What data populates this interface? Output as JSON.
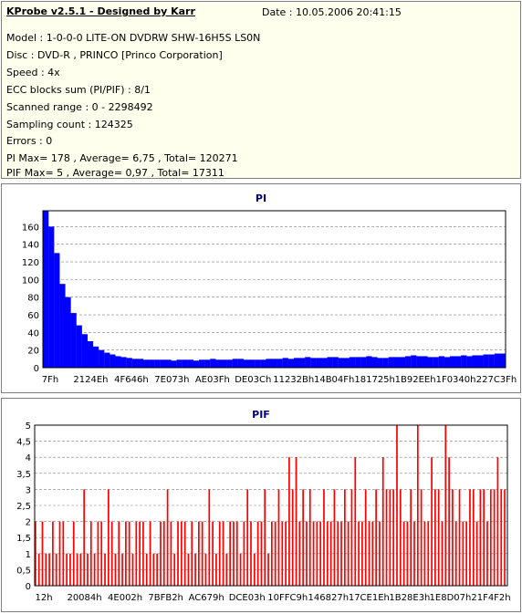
{
  "header": {
    "title": "KProbe v2.5.1 - Designed by Karr",
    "date": "Date : 10.05.2006 20:41:15"
  },
  "info_lines": [
    "Model : 1-0-0-0 LITE-ON DVDRW SHW-16H5S  LS0N",
    "Disc : DVD-R , PRINCO [Princo Corporation]",
    "Speed : 4x",
    "ECC blocks sum (PI/PIF) : 8/1",
    "Scanned range : 0 - 2298492",
    "Sampling count : 124325",
    "Errors : 0",
    "PI Max= 178 , Average= 6,75 , Total= 120271",
    "PIF Max= 5 , Average= 0,97 , Total= 17311"
  ],
  "colors": {
    "pi_series": "#0000ff",
    "pif_series": "#ff0000",
    "title_text": "#000080",
    "grid": "#808080",
    "info_bg": "#ffffee"
  },
  "chart_data": [
    {
      "type": "area",
      "title": "PI",
      "x_tick_labels": [
        "7Fh",
        "2124Eh",
        "4F646h",
        "7E073h",
        "AE03Fh",
        "DE03Ch",
        "11232Bh",
        "14B04Fh",
        "181725h",
        "1B92EEh",
        "1F0340h",
        "227C3Fh"
      ],
      "y_tick_labels": [
        "0",
        "20",
        "40",
        "60",
        "80",
        "100",
        "120",
        "140",
        "160"
      ],
      "ylim": [
        0,
        178
      ],
      "grid": true,
      "series": [
        {
          "values": [
            178,
            160,
            130,
            95,
            80,
            62,
            48,
            38,
            30,
            24,
            20,
            17,
            15,
            13,
            12,
            11,
            10,
            10,
            9,
            9,
            9,
            9,
            9,
            8,
            9,
            9,
            9,
            8,
            9,
            9,
            10,
            9,
            9,
            9,
            10,
            10,
            9,
            9,
            9,
            9,
            10,
            10,
            10,
            11,
            10,
            11,
            11,
            12,
            11,
            11,
            11,
            12,
            12,
            11,
            11,
            12,
            12,
            12,
            13,
            12,
            11,
            11,
            12,
            12,
            12,
            13,
            14,
            13,
            13,
            12,
            12,
            13,
            12,
            13,
            13,
            14,
            13,
            14,
            14,
            15,
            15,
            16,
            16
          ]
        }
      ]
    },
    {
      "type": "bar",
      "title": "PIF",
      "x_tick_labels": [
        "12h",
        "20084h",
        "4E002h",
        "7BFB2h",
        "AC679h",
        "DCE03h",
        "10FFC9h",
        "146827h",
        "17CE1Eh",
        "1B28E3h",
        "1E8D07h",
        "21F4F2h"
      ],
      "y_tick_labels": [
        "0",
        "0,5",
        "1",
        "1,5",
        "2",
        "2,5",
        "3",
        "3,5",
        "4",
        "4,5",
        "5"
      ],
      "ylim": [
        0,
        5
      ],
      "grid": true,
      "series": [
        {
          "values": [
            2,
            1,
            2,
            1,
            1,
            2,
            1,
            2,
            2,
            1,
            1,
            2,
            1,
            1,
            3,
            1,
            2,
            1,
            2,
            2,
            1,
            3,
            2,
            1,
            2,
            1,
            2,
            2,
            1,
            2,
            2,
            2,
            1,
            2,
            1,
            1,
            2,
            2,
            3,
            2,
            1,
            2,
            2,
            2,
            1,
            2,
            1,
            2,
            2,
            1,
            3,
            2,
            1,
            2,
            2,
            1,
            2,
            2,
            2,
            1,
            2,
            3,
            2,
            1,
            2,
            2,
            3,
            1,
            2,
            2,
            3,
            2,
            2,
            4,
            3,
            4,
            2,
            3,
            2,
            3,
            2,
            2,
            2,
            3,
            2,
            2,
            3,
            2,
            2,
            3,
            2,
            3,
            4,
            2,
            2,
            3,
            2,
            2,
            3,
            2,
            4,
            3,
            3,
            3,
            5,
            3,
            2,
            2,
            3,
            2,
            5,
            3,
            2,
            2,
            4,
            3,
            3,
            2,
            5,
            4,
            3,
            2,
            3,
            2,
            2,
            3,
            3,
            2,
            3,
            3,
            2,
            3,
            3,
            4,
            3,
            3
          ]
        }
      ]
    }
  ]
}
